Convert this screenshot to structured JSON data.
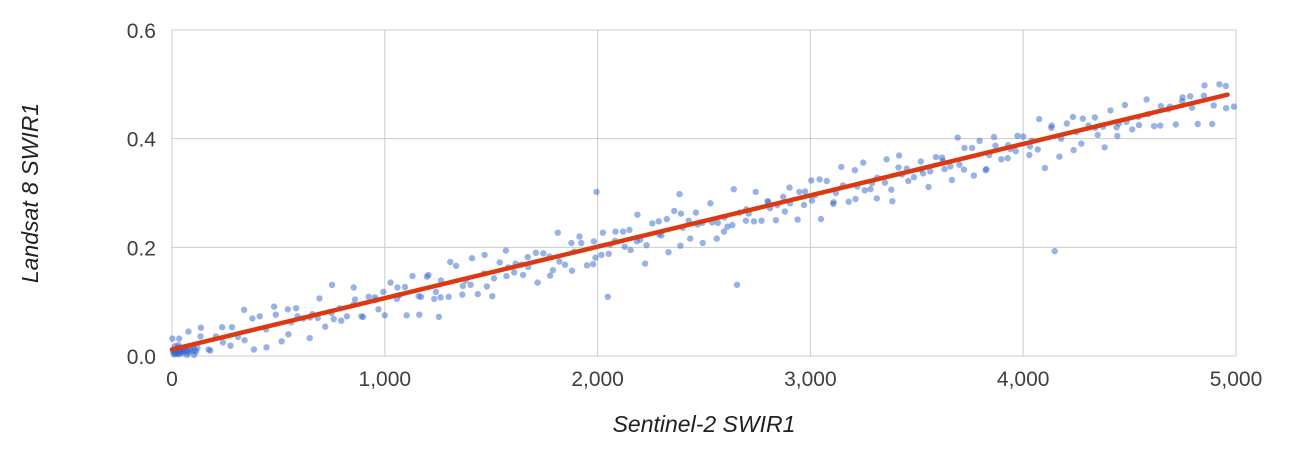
{
  "chart_data": {
    "type": "scatter",
    "title": "",
    "xlabel": "Sentinel-2 SWIR1",
    "ylabel": "Landsat 8 SWIR1",
    "xlim": [
      0,
      5000
    ],
    "ylim": [
      0,
      0.6
    ],
    "x_ticks": [
      0,
      1000,
      2000,
      3000,
      4000,
      5000
    ],
    "x_tick_labels": [
      "0",
      "1,000",
      "2,000",
      "3,000",
      "4,000",
      "5,000"
    ],
    "y_ticks": [
      0,
      0.2,
      0.4,
      0.6
    ],
    "y_tick_labels": [
      "0.0",
      "0.2",
      "0.4",
      "0.6"
    ],
    "grid": true,
    "legend": "none",
    "gridline_color": "#cccccc",
    "point_color": "#3366cc",
    "point_opacity": 0.5,
    "point_radius": 3.2,
    "trend_line": {
      "color": "#dc3912",
      "width": 4.5,
      "x1": 0,
      "y1": 0.012,
      "x2": 4960,
      "y2": 0.481
    },
    "points": [
      [
        2,
        0.032
      ],
      [
        31,
        0.003
      ],
      [
        34,
        0.032
      ],
      [
        77,
        0.045
      ],
      [
        70,
        0.002
      ],
      [
        104,
        0.002
      ],
      [
        134,
        0.036
      ],
      [
        136,
        0.052
      ],
      [
        180,
        0.01
      ],
      [
        172,
        0.012
      ],
      [
        207,
        0.036
      ],
      [
        236,
        0.053
      ],
      [
        239,
        0.025
      ],
      [
        282,
        0.053
      ],
      [
        275,
        0.019
      ],
      [
        310,
        0.035
      ],
      [
        339,
        0.085
      ],
      [
        341,
        0.029
      ],
      [
        385,
        0.012
      ],
      [
        378,
        0.069
      ],
      [
        412,
        0.073
      ],
      [
        442,
        0.049
      ],
      [
        444,
        0.016
      ],
      [
        488,
        0.076
      ],
      [
        480,
        0.091
      ],
      [
        515,
        0.027
      ],
      [
        544,
        0.086
      ],
      [
        547,
        0.04
      ],
      [
        590,
        0.073
      ],
      [
        583,
        0.088
      ],
      [
        617,
        0.069
      ],
      [
        647,
        0.033
      ],
      [
        649,
        0.071
      ],
      [
        693,
        0.106
      ],
      [
        685,
        0.07
      ],
      [
        720,
        0.054
      ],
      [
        749,
        0.079
      ],
      [
        752,
        0.131
      ],
      [
        795,
        0.065
      ],
      [
        788,
        0.088
      ],
      [
        822,
        0.073
      ],
      [
        852,
        0.094
      ],
      [
        854,
        0.126
      ],
      [
        898,
        0.072
      ],
      [
        890,
        0.073
      ],
      [
        925,
        0.109
      ],
      [
        954,
        0.108
      ],
      [
        957,
        0.103
      ],
      [
        1000,
        0.075
      ],
      [
        993,
        0.118
      ],
      [
        1027,
        0.135
      ],
      [
        1057,
        0.105
      ],
      [
        1059,
        0.126
      ],
      [
        1103,
        0.075
      ],
      [
        1095,
        0.127
      ],
      [
        1130,
        0.147
      ],
      [
        1159,
        0.11
      ],
      [
        1162,
        0.076
      ],
      [
        1205,
        0.149
      ],
      [
        1198,
        0.146
      ],
      [
        1232,
        0.105
      ],
      [
        1262,
        0.108
      ],
      [
        1264,
        0.139
      ],
      [
        1308,
        0.173
      ],
      [
        1300,
        0.109
      ],
      [
        1335,
        0.166
      ],
      [
        1364,
        0.113
      ],
      [
        1367,
        0.129
      ],
      [
        1410,
        0.18
      ],
      [
        1403,
        0.131
      ],
      [
        1437,
        0.114
      ],
      [
        1467,
        0.152
      ],
      [
        1469,
        0.186
      ],
      [
        1513,
        0.143
      ],
      [
        1505,
        0.11
      ],
      [
        1540,
        0.172
      ],
      [
        1569,
        0.194
      ],
      [
        1572,
        0.147
      ],
      [
        1615,
        0.17
      ],
      [
        1608,
        0.154
      ],
      [
        1642,
        0.168
      ],
      [
        1672,
        0.182
      ],
      [
        1674,
        0.164
      ],
      [
        1718,
        0.135
      ],
      [
        1710,
        0.19
      ],
      [
        1745,
        0.189
      ],
      [
        1774,
        0.183
      ],
      [
        1777,
        0.148
      ],
      [
        1820,
        0.174
      ],
      [
        1813,
        0.227
      ],
      [
        1847,
        0.168
      ],
      [
        1877,
        0.208
      ],
      [
        1879,
        0.157
      ],
      [
        1923,
        0.208
      ],
      [
        1915,
        0.22
      ],
      [
        1950,
        0.167
      ],
      [
        1979,
        0.169
      ],
      [
        1982,
        0.211
      ],
      [
        2025,
        0.227
      ],
      [
        2018,
        0.186
      ],
      [
        2052,
        0.188
      ],
      [
        2082,
        0.212
      ],
      [
        2084,
        0.229
      ],
      [
        2128,
        0.201
      ],
      [
        2120,
        0.229
      ],
      [
        2155,
        0.195
      ],
      [
        2184,
        0.211
      ],
      [
        2187,
        0.26
      ],
      [
        2230,
        0.204
      ],
      [
        2223,
        0.17
      ],
      [
        2257,
        0.244
      ],
      [
        2287,
        0.248
      ],
      [
        2289,
        0.224
      ],
      [
        2333,
        0.191
      ],
      [
        2325,
        0.252
      ],
      [
        2360,
        0.267
      ],
      [
        2389,
        0.203
      ],
      [
        2392,
        0.262
      ],
      [
        2435,
        0.216
      ],
      [
        2428,
        0.249
      ],
      [
        2462,
        0.264
      ],
      [
        2492,
        0.245
      ],
      [
        2494,
        0.208
      ],
      [
        2538,
        0.246
      ],
      [
        2530,
        0.281
      ],
      [
        2565,
        0.245
      ],
      [
        2594,
        0.229
      ],
      [
        2597,
        0.255
      ],
      [
        2640,
        0.307
      ],
      [
        2633,
        0.241
      ],
      [
        2667,
        0.264
      ],
      [
        2697,
        0.249
      ],
      [
        2699,
        0.27
      ],
      [
        2743,
        0.302
      ],
      [
        2735,
        0.248
      ],
      [
        2770,
        0.249
      ],
      [
        2799,
        0.285
      ],
      [
        2802,
        0.283
      ],
      [
        2845,
        0.278
      ],
      [
        2838,
        0.25
      ],
      [
        2872,
        0.293
      ],
      [
        2902,
        0.31
      ],
      [
        2904,
        0.281
      ],
      [
        2948,
        0.302
      ],
      [
        2940,
        0.251
      ],
      [
        2975,
        0.303
      ],
      [
        3004,
        0.323
      ],
      [
        3007,
        0.286
      ],
      [
        3050,
        0.252
      ],
      [
        3043,
        0.325
      ],
      [
        3077,
        0.322
      ],
      [
        3107,
        0.28
      ],
      [
        3109,
        0.283
      ],
      [
        3153,
        0.314
      ],
      [
        3145,
        0.348
      ],
      [
        3180,
        0.284
      ],
      [
        3209,
        0.342
      ],
      [
        3212,
        0.289
      ],
      [
        3255,
        0.305
      ],
      [
        3248,
        0.356
      ],
      [
        3282,
        0.307
      ],
      [
        3312,
        0.29
      ],
      [
        3314,
        0.328
      ],
      [
        3358,
        0.362
      ],
      [
        3350,
        0.319
      ],
      [
        3385,
        0.285
      ],
      [
        3414,
        0.347
      ],
      [
        3417,
        0.369
      ],
      [
        3460,
        0.322
      ],
      [
        3453,
        0.345
      ],
      [
        3487,
        0.329
      ],
      [
        3517,
        0.343
      ],
      [
        3519,
        0.358
      ],
      [
        3563,
        0.34
      ],
      [
        3555,
        0.311
      ],
      [
        3590,
        0.366
      ],
      [
        3619,
        0.365
      ],
      [
        3622,
        0.359
      ],
      [
        3665,
        0.324
      ],
      [
        3658,
        0.349
      ],
      [
        3692,
        0.402
      ],
      [
        3722,
        0.343
      ],
      [
        3724,
        0.383
      ],
      [
        3768,
        0.332
      ],
      [
        3760,
        0.383
      ],
      [
        3795,
        0.396
      ],
      [
        3824,
        0.342
      ],
      [
        3827,
        0.344
      ],
      [
        3870,
        0.387
      ],
      [
        3863,
        0.403
      ],
      [
        3897,
        0.362
      ],
      [
        3927,
        0.364
      ],
      [
        3929,
        0.388
      ],
      [
        3973,
        0.405
      ],
      [
        3965,
        0.377
      ],
      [
        4000,
        0.404
      ],
      [
        4029,
        0.37
      ],
      [
        4032,
        0.386
      ],
      [
        4075,
        0.436
      ],
      [
        4068,
        0.38
      ],
      [
        4102,
        0.346
      ],
      [
        4132,
        0.42
      ],
      [
        4134,
        0.424
      ],
      [
        4178,
        0.4
      ],
      [
        4170,
        0.367
      ],
      [
        4205,
        0.428
      ],
      [
        4234,
        0.44
      ],
      [
        4237,
        0.379
      ],
      [
        4280,
        0.437
      ],
      [
        4273,
        0.391
      ],
      [
        4307,
        0.424
      ],
      [
        4337,
        0.439
      ],
      [
        4339,
        0.42
      ],
      [
        4383,
        0.384
      ],
      [
        4375,
        0.422
      ],
      [
        4410,
        0.452
      ],
      [
        4439,
        0.421
      ],
      [
        4442,
        0.405
      ],
      [
        4485,
        0.431
      ],
      [
        4478,
        0.462
      ],
      [
        4512,
        0.417
      ],
      [
        4542,
        0.44
      ],
      [
        4544,
        0.425
      ],
      [
        4588,
        0.445
      ],
      [
        4580,
        0.472
      ],
      [
        4615,
        0.423
      ],
      [
        4644,
        0.424
      ],
      [
        4647,
        0.46
      ],
      [
        4690,
        0.459
      ],
      [
        4683,
        0.454
      ],
      [
        4717,
        0.426
      ],
      [
        4747,
        0.469
      ],
      [
        4749,
        0.476
      ],
      [
        4793,
        0.457
      ],
      [
        4785,
        0.478
      ],
      [
        4820,
        0.427
      ],
      [
        4849,
        0.479
      ],
      [
        4852,
        0.498
      ],
      [
        4895,
        0.461
      ],
      [
        4888,
        0.427
      ],
      [
        4922,
        0.5
      ],
      [
        4952,
        0.497
      ],
      [
        4954,
        0.456
      ],
      [
        4990,
        0.459
      ],
      [
        5,
        0.008
      ],
      [
        8,
        0.012
      ],
      [
        12,
        0.006
      ],
      [
        15,
        0.01
      ],
      [
        18,
        0.004
      ],
      [
        22,
        0.014
      ],
      [
        25,
        0.009
      ],
      [
        28,
        0.006
      ],
      [
        32,
        0.011
      ],
      [
        35,
        0.016
      ],
      [
        40,
        0.007
      ],
      [
        44,
        0.012
      ],
      [
        48,
        0.005
      ],
      [
        52,
        0.009
      ],
      [
        57,
        0.013
      ],
      [
        61,
        0.008
      ],
      [
        66,
        0.015
      ],
      [
        72,
        0.01
      ],
      [
        78,
        0.006
      ],
      [
        85,
        0.013
      ],
      [
        92,
        0.009
      ],
      [
        98,
        0.017
      ],
      [
        106,
        0.011
      ],
      [
        113,
        0.008
      ],
      [
        120,
        0.015
      ],
      [
        9,
        0.003
      ],
      [
        14,
        0.018
      ],
      [
        30,
        0.02
      ],
      [
        560,
        0.062
      ],
      [
        660,
        0.077
      ],
      [
        760,
        0.068
      ],
      [
        860,
        0.104
      ],
      [
        970,
        0.086
      ],
      [
        1070,
        0.112
      ],
      [
        1170,
        0.109
      ],
      [
        1240,
        0.118
      ],
      [
        1380,
        0.139
      ],
      [
        1480,
        0.128
      ],
      [
        1580,
        0.163
      ],
      [
        1650,
        0.149
      ],
      [
        1790,
        0.158
      ],
      [
        1890,
        0.192
      ],
      [
        1990,
        0.181
      ],
      [
        2060,
        0.205
      ],
      [
        2150,
        0.232
      ],
      [
        2200,
        0.214
      ],
      [
        2300,
        0.222
      ],
      [
        2400,
        0.236
      ],
      [
        2470,
        0.242
      ],
      [
        2560,
        0.216
      ],
      [
        2610,
        0.238
      ],
      [
        2710,
        0.262
      ],
      [
        2810,
        0.272
      ],
      [
        2880,
        0.266
      ],
      [
        2970,
        0.278
      ],
      [
        3020,
        0.296
      ],
      [
        3120,
        0.3
      ],
      [
        3220,
        0.312
      ],
      [
        3290,
        0.318
      ],
      [
        3380,
        0.306
      ],
      [
        3430,
        0.334
      ],
      [
        3530,
        0.336
      ],
      [
        3630,
        0.344
      ],
      [
        3700,
        0.352
      ],
      [
        3840,
        0.37
      ],
      [
        3940,
        0.381
      ],
      [
        4040,
        0.396
      ],
      [
        4250,
        0.412
      ],
      [
        4350,
        0.407
      ],
      [
        4450,
        0.428
      ],
      [
        4148,
        0.193
      ],
      [
        2655,
        0.131
      ],
      [
        1254,
        0.072
      ],
      [
        2048,
        0.109
      ],
      [
        2385,
        0.298
      ],
      [
        1995,
        0.302
      ]
    ]
  }
}
